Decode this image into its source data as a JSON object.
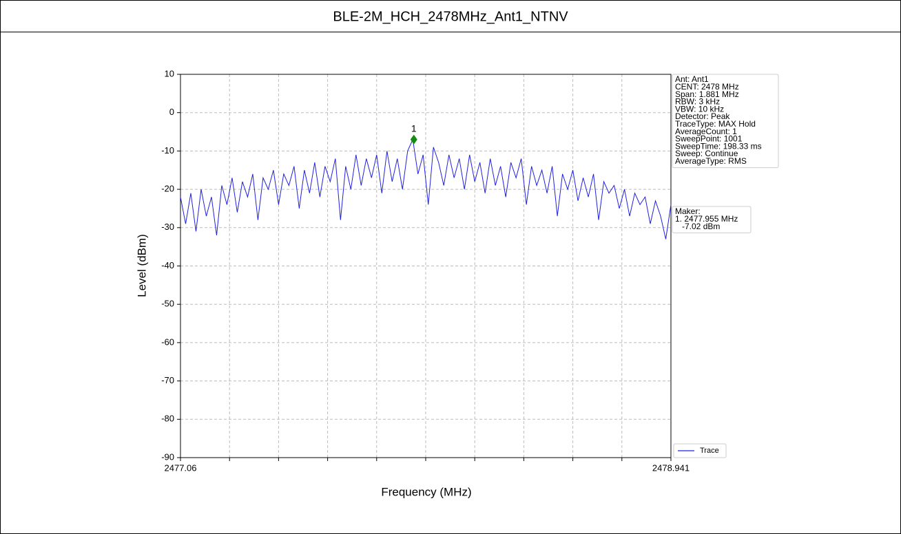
{
  "chart_data": {
    "type": "line",
    "title": "BLE-2M_HCH_2478MHz_Ant1_NTNV",
    "xlabel": "Frequency (MHz)",
    "ylabel": "Level (dBm)",
    "xlim": [
      2477.06,
      2478.941
    ],
    "xticks": [
      2477.06,
      {
        "value": 2477.2481,
        "label": null
      },
      {
        "value": 2477.4362,
        "label": null
      },
      {
        "value": 2477.6243,
        "label": null
      },
      {
        "value": 2477.8124,
        "label": null
      },
      {
        "value": 2478.0005,
        "label": null
      },
      {
        "value": 2478.1886,
        "label": null
      },
      {
        "value": 2478.3767,
        "label": null
      },
      {
        "value": 2478.5648,
        "label": null
      },
      {
        "value": 2478.7529,
        "label": null
      },
      2478.941
    ],
    "ylim": [
      -90,
      10
    ],
    "yticks": [
      -90,
      -80,
      -70,
      -60,
      -50,
      -40,
      -30,
      -20,
      -10,
      0,
      10
    ],
    "grid": true,
    "series": [
      {
        "name": "Trace",
        "color": "#1f1fe0",
        "x": [
          2477.06,
          2477.0798,
          2477.0996,
          2477.1194,
          2477.1392,
          2477.159,
          2477.1788,
          2477.1986,
          2477.2184,
          2477.2382,
          2477.258,
          2477.2778,
          2477.2976,
          2477.3174,
          2477.3372,
          2477.357,
          2477.3768,
          2477.3966,
          2477.4164,
          2477.4362,
          2477.456,
          2477.4758,
          2477.4956,
          2477.5154,
          2477.5352,
          2477.555,
          2477.5748,
          2477.5946,
          2477.6144,
          2477.6342,
          2477.654,
          2477.6738,
          2477.6936,
          2477.7134,
          2477.7332,
          2477.753,
          2477.7728,
          2477.7926,
          2477.8124,
          2477.8322,
          2477.852,
          2477.8718,
          2477.8916,
          2477.9114,
          2477.9312,
          2477.951,
          2477.9708,
          2477.9906,
          2478.0104,
          2478.0302,
          2478.05,
          2478.0698,
          2478.0896,
          2478.1094,
          2478.1292,
          2478.149,
          2478.1688,
          2478.1886,
          2478.2084,
          2478.2282,
          2478.248,
          2478.2678,
          2478.2876,
          2478.3074,
          2478.3272,
          2478.347,
          2478.3668,
          2478.3866,
          2478.4064,
          2478.4262,
          2478.446,
          2478.4658,
          2478.4856,
          2478.5054,
          2478.5252,
          2478.545,
          2478.5648,
          2478.5846,
          2478.6044,
          2478.6242,
          2478.644,
          2478.6638,
          2478.6836,
          2478.7034,
          2478.7232,
          2478.743,
          2478.7628,
          2478.7826,
          2478.8024,
          2478.8222,
          2478.842,
          2478.8618,
          2478.8816,
          2478.9014,
          2478.9212,
          2478.941
        ],
        "values": [
          -22,
          -29,
          -21,
          -31,
          -20,
          -27,
          -22,
          -32,
          -19,
          -24,
          -17,
          -26,
          -18,
          -22,
          -16,
          -28,
          -17,
          -20,
          -15,
          -24,
          -16,
          -19,
          -14,
          -25,
          -15,
          -21,
          -13,
          -22,
          -14,
          -18,
          -12,
          -28,
          -14,
          -20,
          -11,
          -19,
          -12,
          -17,
          -11,
          -21,
          -10,
          -18,
          -12,
          -20,
          -10,
          -7,
          -16,
          -11,
          -24,
          -9,
          -13,
          -19,
          -11,
          -17,
          -12,
          -20,
          -11,
          -18,
          -13,
          -21,
          -12,
          -19,
          -14,
          -22,
          -13,
          -17,
          -12,
          -24,
          -14,
          -19,
          -15,
          -21,
          -14,
          -27,
          -16,
          -20,
          -15,
          -23,
          -17,
          -22,
          -16,
          -28,
          -18,
          -21,
          -19,
          -25,
          -20,
          -27,
          -21,
          -24,
          -22,
          -29,
          -23,
          -27,
          -33,
          -24
        ]
      }
    ],
    "marker": {
      "label": "1",
      "x": 2477.955,
      "y": -7.02,
      "color": "#138a13"
    },
    "info_lines": [
      "Ant: Ant1",
      "CENT: 2478 MHz",
      "Span: 1.881 MHz",
      "RBW: 3 kHz",
      "VBW: 10 kHz",
      "Detector: Peak",
      "TraceType: MAX Hold",
      "AverageCount: 1",
      "SweepPoint: 1001",
      "SweepTime: 198.33 ms",
      "Sweep: Continue",
      "AverageType: RMS"
    ],
    "marker_lines": [
      "Maker:",
      "1. 2477.955 MHz",
      "   -7.02 dBm"
    ],
    "legend": "lower-right"
  }
}
